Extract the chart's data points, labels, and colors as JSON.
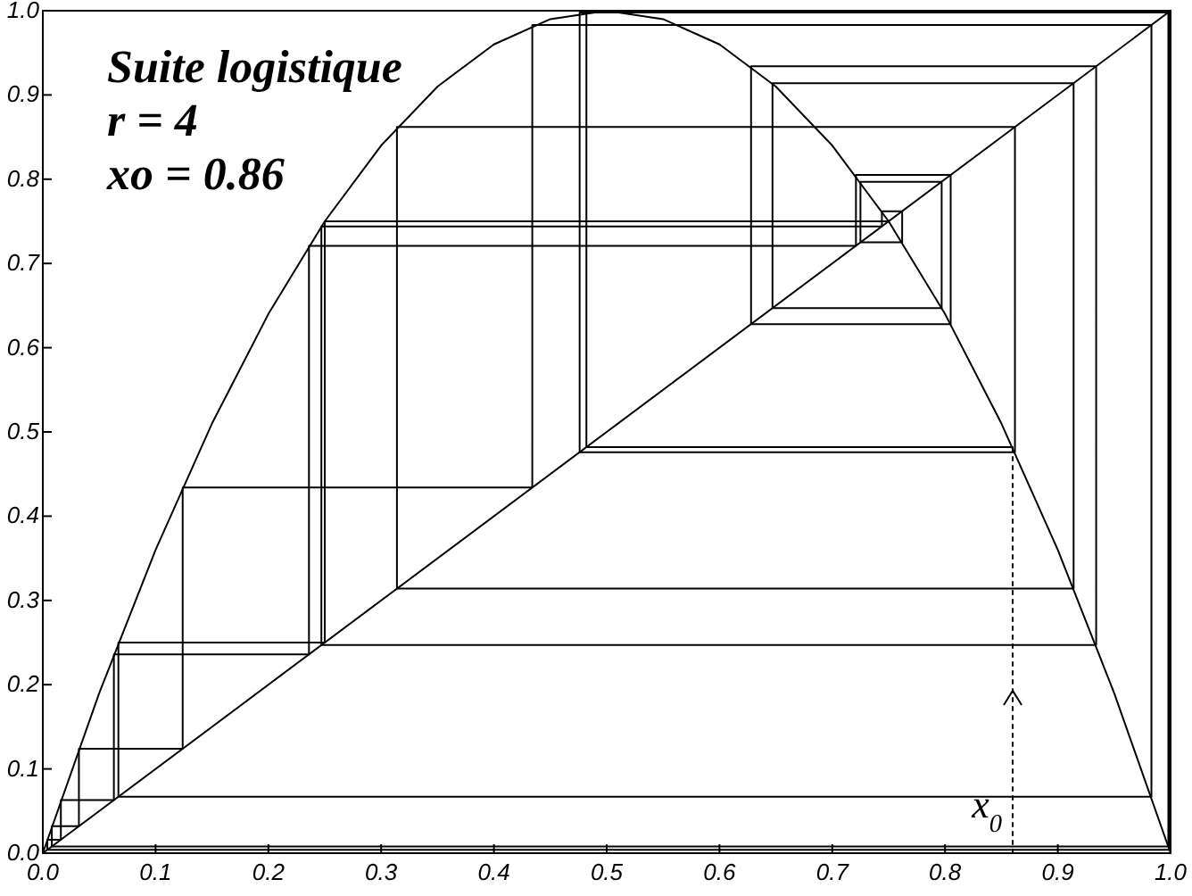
{
  "chart_data": {
    "type": "line",
    "title": "Suite logistique",
    "annotations": [
      "r = 4",
      "xo = 0.86",
      {
        "text": "x$_{0}$",
        "x": 0.86,
        "y": 0
      }
    ],
    "xlim": [
      0,
      1
    ],
    "ylim": [
      0,
      1
    ],
    "xticks": [
      {
        "value": 0,
        "label": "0.0"
      },
      {
        "value": 0.1,
        "label": "0.1"
      },
      {
        "value": 0.2,
        "label": "0.2"
      },
      {
        "value": 0.3,
        "label": "0.3"
      },
      {
        "value": 0.4,
        "label": "0.4"
      },
      {
        "value": 0.5,
        "label": "0.5"
      },
      {
        "value": 0.6,
        "label": "0.6"
      },
      {
        "value": 0.7,
        "label": "0.7"
      },
      {
        "value": 0.8,
        "label": "0.8"
      },
      {
        "value": 0.9,
        "label": "0.9"
      },
      {
        "value": 1,
        "label": "1.0"
      }
    ],
    "yticks": [
      {
        "value": 0,
        "label": "0.0"
      },
      {
        "value": 0.1,
        "label": "0.1"
      },
      {
        "value": 0.2,
        "label": "0.2"
      },
      {
        "value": 0.3,
        "label": "0.3"
      },
      {
        "value": 0.4,
        "label": "0.4"
      },
      {
        "value": 0.5,
        "label": "0.5"
      },
      {
        "value": 0.6,
        "label": "0.6"
      },
      {
        "value": 0.7,
        "label": "0.7"
      },
      {
        "value": 0.8,
        "label": "0.8"
      },
      {
        "value": 0.9,
        "label": "0.9"
      },
      {
        "value": 1,
        "label": "1.0"
      }
    ],
    "grid": false,
    "marker": "none",
    "series": [
      {
        "color": "#000000",
        "x": [
          0,
          0.05,
          0.1,
          0.15,
          0.2,
          0.25,
          0.3,
          0.35,
          0.4,
          0.45,
          0.5,
          0.55,
          0.6,
          0.65,
          0.7,
          0.75,
          0.8,
          0.85,
          0.9,
          0.95,
          1
        ],
        "values": [
          0,
          0.19,
          0.36,
          0.51,
          0.64,
          0.75,
          0.84,
          0.91,
          0.96,
          0.99,
          1,
          0.99,
          0.96,
          0.91,
          0.84,
          0.75,
          0.64,
          0.51,
          0.36,
          0.19,
          0
        ]
      },
      {
        "color": "#000000",
        "x": [
          0,
          1
        ],
        "values": [
          0,
          1
        ]
      },
      {
        "color": "#000000",
        "line_style": "dotted",
        "x": [
          0.86,
          0.86
        ],
        "values": [
          0,
          0.482
        ]
      },
      {
        "color": "#000000",
        "x": [
          0.86,
          0.482,
          0.482,
          0.999,
          0.999,
          0.004,
          0.004,
          0.016,
          0.016,
          0.063,
          0.063,
          0.236,
          0.236,
          0.721,
          0.721,
          0.805,
          0.805,
          0.628,
          0.628,
          0.934,
          0.934,
          0.247,
          0.247,
          0.744,
          0.744,
          0.762,
          0.762,
          0.725,
          0.725,
          0.797,
          0.797,
          0.647,
          0.647,
          0.914,
          0.914,
          0.314,
          0.314,
          0.862,
          0.862,
          0.476,
          0.476,
          0.998,
          0.998,
          0.008,
          0.008,
          0.032,
          0.032,
          0.124,
          0.124,
          0.434,
          0.434,
          0.983,
          0.983,
          0.067,
          0.067,
          0.25,
          0.25,
          0.75
        ],
        "values": [
          0.482,
          0.482,
          0.999,
          0.999,
          0.004,
          0.004,
          0.016,
          0.016,
          0.063,
          0.063,
          0.236,
          0.236,
          0.721,
          0.721,
          0.805,
          0.805,
          0.628,
          0.628,
          0.934,
          0.934,
          0.247,
          0.247,
          0.744,
          0.744,
          0.762,
          0.762,
          0.725,
          0.725,
          0.797,
          0.797,
          0.647,
          0.647,
          0.914,
          0.914,
          0.314,
          0.314,
          0.862,
          0.862,
          0.476,
          0.476,
          0.998,
          0.998,
          0.008,
          0.008,
          0.032,
          0.032,
          0.124,
          0.124,
          0.434,
          0.434,
          0.983,
          0.983,
          0.067,
          0.067,
          0.25,
          0.25,
          0.75,
          0.75
        ]
      }
    ]
  }
}
